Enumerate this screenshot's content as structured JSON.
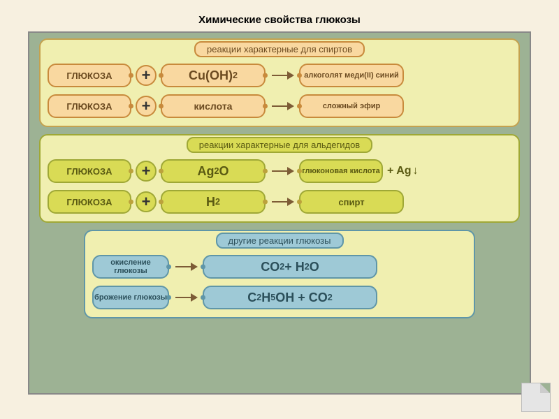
{
  "page": {
    "title": "Химические свойства глюкозы",
    "background": "#f7f0e0",
    "canvas_bg": "#9db294",
    "canvas_border": "#888888"
  },
  "sections": [
    {
      "id": "alcohols",
      "header": "реакции  характерные для спиртов",
      "panel_bg": "#f0efb0",
      "panel_border": "#c4a24f",
      "header_bg": "#f9d8a0",
      "header_border": "#c88a3c",
      "pill_bg": "#f9d8a0",
      "pill_border": "#c88a3c",
      "pill_text": "#6b4a20",
      "dot_color": "#c88a3c",
      "rows": [
        {
          "a": "ГЛЮКОЗА",
          "a_w": 120,
          "op": "plus_circle",
          "b_html": "Cu(OH)<sub>2</sub>",
          "b_w": 150,
          "b_fs": 18,
          "arrow": true,
          "c": "алкоголят меди(II) синий",
          "c_w": 150,
          "c_small": true
        },
        {
          "a": "ГЛЮКОЗА",
          "a_w": 120,
          "op": "plus_circle",
          "b": "кислота",
          "b_w": 150,
          "b_fs": 14,
          "arrow": true,
          "c": "сложный эфир",
          "c_w": 150,
          "c_small": true
        }
      ]
    },
    {
      "id": "aldehydes",
      "header": "реакции  характерные для альдегидов",
      "panel_bg": "#f0efb0",
      "panel_border": "#9fa836",
      "header_bg": "#d9db55",
      "header_border": "#9fa836",
      "pill_bg": "#d9db55",
      "pill_border": "#9fa836",
      "pill_text": "#5a5a12",
      "dot_color": "#bca23c",
      "rows": [
        {
          "a": "ГЛЮКОЗА",
          "a_w": 120,
          "op": "plus_circle",
          "b_html": "Ag<sub>2</sub>O",
          "b_w": 150,
          "b_fs": 18,
          "arrow": true,
          "c": "глюконовая кислота",
          "c_w": 120,
          "c_small": true,
          "extra_html": "+ Ag",
          "extra_down": "↓"
        },
        {
          "a": "ГЛЮКОЗА",
          "a_w": 120,
          "op": "plus_circle",
          "b_html": "H<sub>2</sub>",
          "b_w": 150,
          "b_fs": 18,
          "arrow": true,
          "c": "спирт",
          "c_w": 150,
          "c_small": false
        }
      ]
    },
    {
      "id": "other",
      "header": "другие реакции  глюкозы",
      "panel_bg": "#f0efb0",
      "panel_border": "#5f96a8",
      "header_bg": "#9ec9d6",
      "header_border": "#5f96a8",
      "pill_bg": "#9ec9d6",
      "pill_border": "#5f96a8",
      "pill_text": "#2b4f5a",
      "dot_color": "#5f96a8",
      "narrow": true,
      "rows": [
        {
          "a": "окисление глюкозы",
          "a_w": 110,
          "a_small": true,
          "arrow": true,
          "result_html": "CO<sub>2</sub> + H<sub>2</sub>O",
          "result_w": 250,
          "result_fs": 18
        },
        {
          "a": "брожение глюкозы",
          "a_w": 110,
          "a_small": true,
          "arrow": true,
          "result_html": "C<sub>2</sub>H<sub>5</sub>OH + CO<sub>2</sub>",
          "result_w": 250,
          "result_fs": 18
        }
      ]
    }
  ],
  "corner_fold": "#9db294"
}
